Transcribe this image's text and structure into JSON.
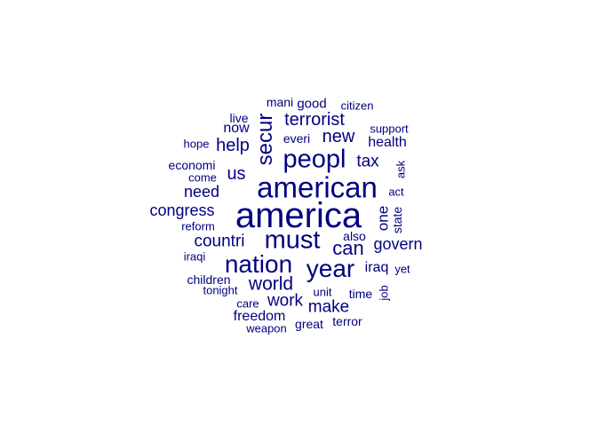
{
  "word_color": "#000080",
  "words": [
    {
      "text": "america",
      "size": 40,
      "vertical": false
    },
    {
      "text": "american",
      "size": 33,
      "vertical": false
    },
    {
      "text": "peopl",
      "size": 29,
      "vertical": false
    },
    {
      "text": "must",
      "size": 29,
      "vertical": false
    },
    {
      "text": "nation",
      "size": 28,
      "vertical": false
    },
    {
      "text": "year",
      "size": 28,
      "vertical": false
    },
    {
      "text": "secur",
      "size": 24,
      "vertical": true
    },
    {
      "text": "can",
      "size": 22,
      "vertical": false
    },
    {
      "text": "world",
      "size": 21,
      "vertical": false
    },
    {
      "text": "terrorist",
      "size": 20,
      "vertical": false
    },
    {
      "text": "new",
      "size": 20,
      "vertical": false
    },
    {
      "text": "help",
      "size": 20,
      "vertical": false
    },
    {
      "text": "us",
      "size": 20,
      "vertical": false
    },
    {
      "text": "countri",
      "size": 19,
      "vertical": false
    },
    {
      "text": "work",
      "size": 19,
      "vertical": false
    },
    {
      "text": "make",
      "size": 19,
      "vertical": false
    },
    {
      "text": "tax",
      "size": 19,
      "vertical": false
    },
    {
      "text": "govern",
      "size": 18,
      "vertical": false
    },
    {
      "text": "congress",
      "size": 18,
      "vertical": false
    },
    {
      "text": "need",
      "size": 18,
      "vertical": false
    },
    {
      "text": "one",
      "size": 17,
      "vertical": true
    },
    {
      "text": "freedom",
      "size": 16,
      "vertical": false
    },
    {
      "text": "health",
      "size": 16,
      "vertical": false
    },
    {
      "text": "iraq",
      "size": 16,
      "vertical": false
    },
    {
      "text": "now",
      "size": 16,
      "vertical": false
    },
    {
      "text": "everi",
      "size": 14,
      "vertical": false
    },
    {
      "text": "good",
      "size": 15,
      "vertical": false
    },
    {
      "text": "also",
      "size": 14,
      "vertical": false
    },
    {
      "text": "state",
      "size": 14,
      "vertical": true
    },
    {
      "text": "live",
      "size": 14,
      "vertical": false
    },
    {
      "text": "economi",
      "size": 14,
      "vertical": false
    },
    {
      "text": "children",
      "size": 14,
      "vertical": false
    },
    {
      "text": "time",
      "size": 14,
      "vertical": false
    },
    {
      "text": "mani",
      "size": 14,
      "vertical": false
    },
    {
      "text": "citizen",
      "size": 13,
      "vertical": false
    },
    {
      "text": "support",
      "size": 13,
      "vertical": false
    },
    {
      "text": "hope",
      "size": 13,
      "vertical": false
    },
    {
      "text": "come",
      "size": 13,
      "vertical": false
    },
    {
      "text": "ask",
      "size": 13,
      "vertical": true
    },
    {
      "text": "act",
      "size": 13,
      "vertical": false
    },
    {
      "text": "reform",
      "size": 13,
      "vertical": false
    },
    {
      "text": "iraqi",
      "size": 13,
      "vertical": false
    },
    {
      "text": "yet",
      "size": 13,
      "vertical": false
    },
    {
      "text": "tonight",
      "size": 13,
      "vertical": false
    },
    {
      "text": "unit",
      "size": 13,
      "vertical": false
    },
    {
      "text": "job",
      "size": 13,
      "vertical": true
    },
    {
      "text": "care",
      "size": 13,
      "vertical": false
    },
    {
      "text": "great",
      "size": 14,
      "vertical": false
    },
    {
      "text": "terror",
      "size": 14,
      "vertical": false
    },
    {
      "text": "weapon",
      "size": 13,
      "vertical": false
    }
  ]
}
